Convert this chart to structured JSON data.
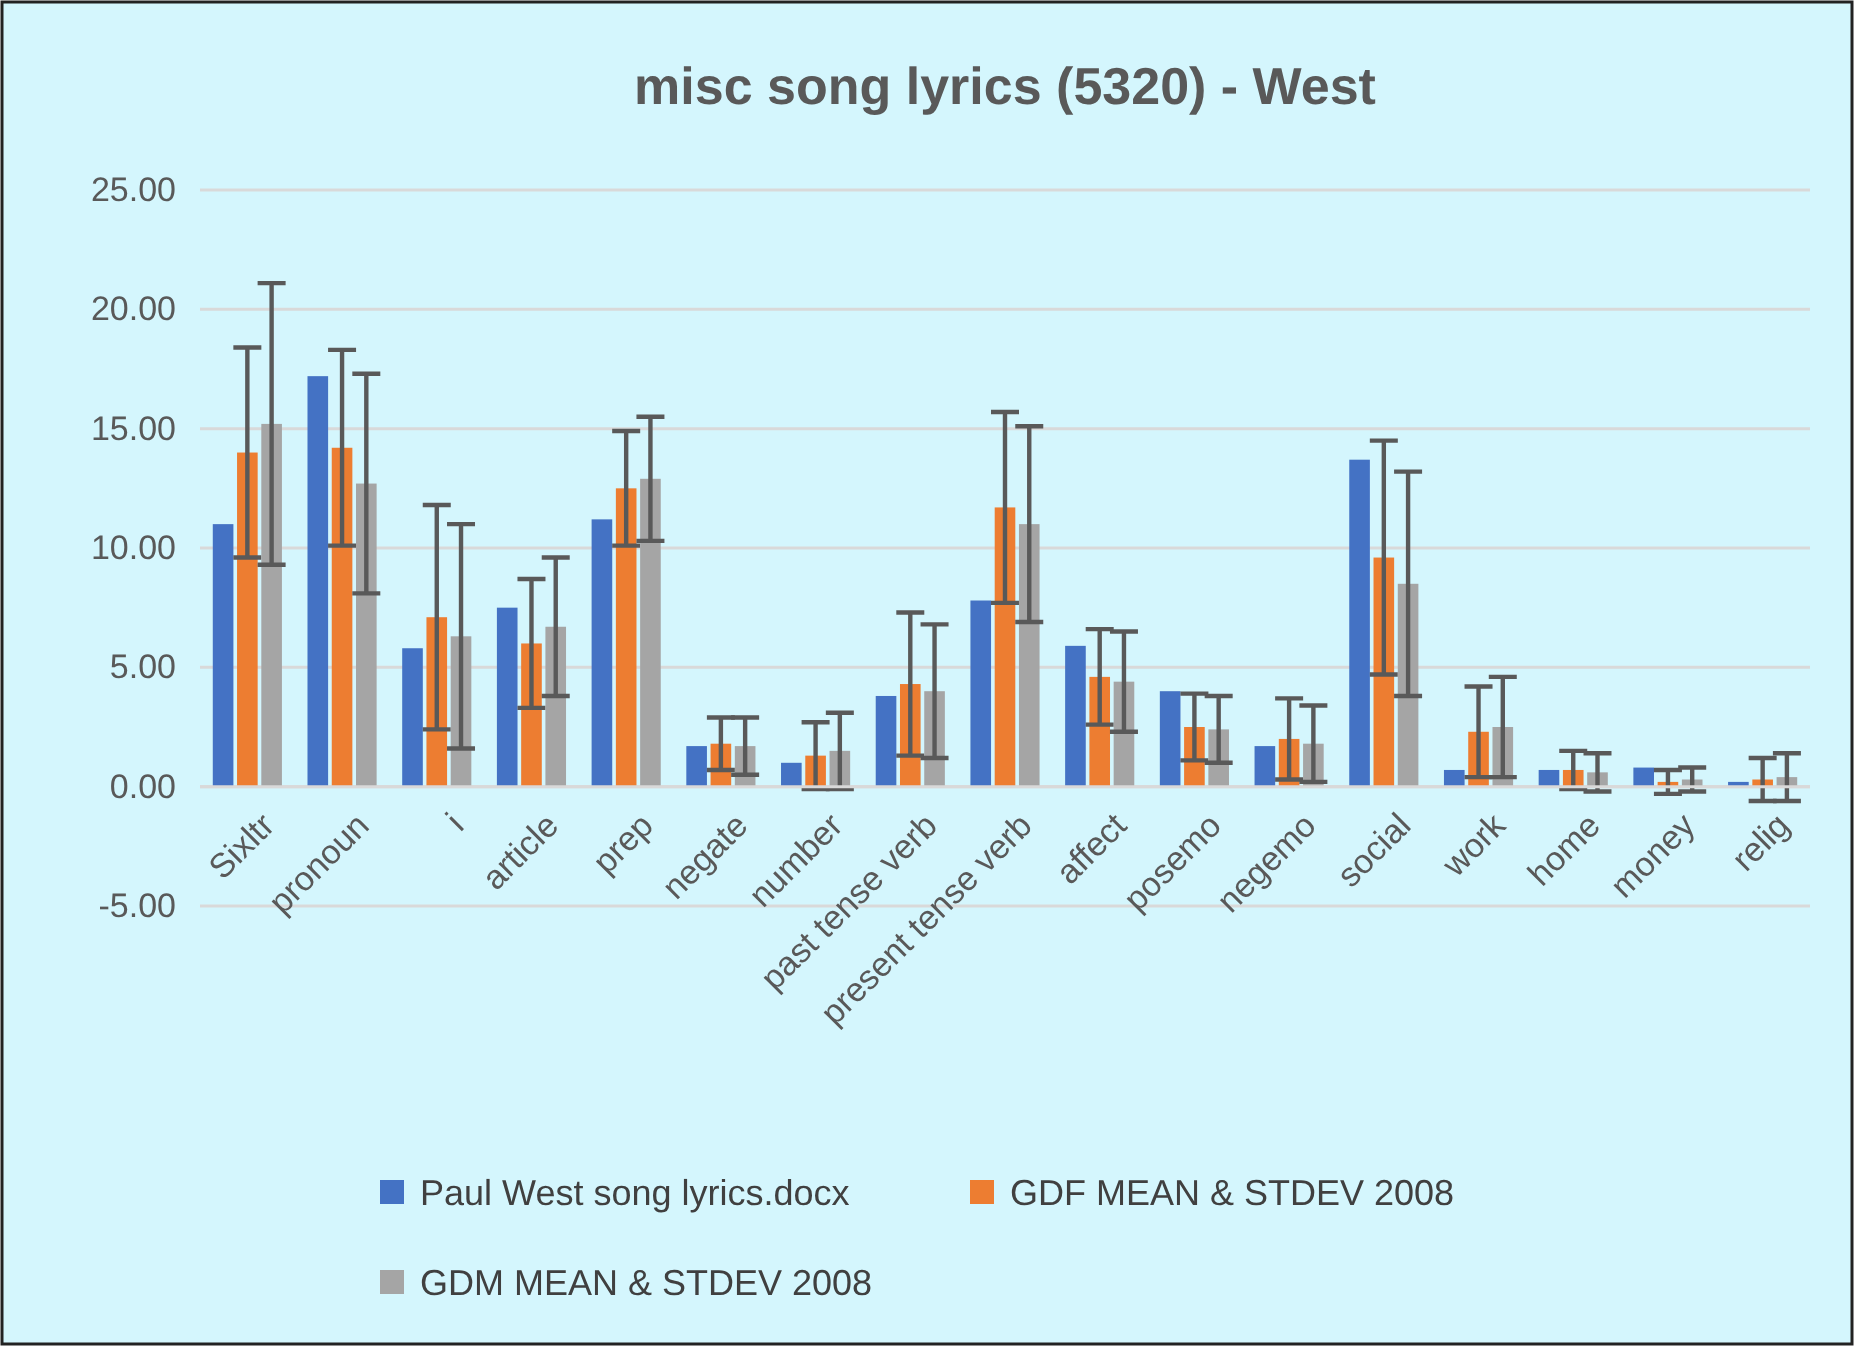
{
  "chart_data": {
    "type": "bar",
    "title": "misc song lyrics (5320) - West",
    "categories": [
      "Sixltr",
      "pronoun",
      "i",
      "article",
      "prep",
      "negate",
      "number",
      "past tense verb",
      "present tense verb",
      "affect",
      "posemo",
      "negemo",
      "social",
      "work",
      "home",
      "money",
      "relig"
    ],
    "series": [
      {
        "name": "Paul West song lyrics.docx",
        "color": "#4472c4",
        "values": [
          11.0,
          17.2,
          5.8,
          7.5,
          11.2,
          1.7,
          1.0,
          3.8,
          7.8,
          5.9,
          4.0,
          1.7,
          13.7,
          0.7,
          0.7,
          0.8,
          0.2
        ]
      },
      {
        "name": "GDF  MEAN & STDEV 2008",
        "color": "#ed7d31",
        "values": [
          14.0,
          14.2,
          7.1,
          6.0,
          12.5,
          1.8,
          1.3,
          4.3,
          11.7,
          4.6,
          2.5,
          2.0,
          9.6,
          2.3,
          0.7,
          0.2,
          0.3
        ],
        "errors": [
          4.4,
          4.1,
          4.7,
          2.7,
          2.4,
          1.1,
          1.4,
          3.0,
          4.0,
          2.0,
          1.4,
          1.7,
          4.9,
          1.9,
          0.8,
          0.5,
          0.9
        ]
      },
      {
        "name": "GDM MEAN & STDEV 2008",
        "color": "#a5a5a5",
        "values": [
          15.2,
          12.7,
          6.3,
          6.7,
          12.9,
          1.7,
          1.5,
          4.0,
          11.0,
          4.4,
          2.4,
          1.8,
          8.5,
          2.5,
          0.6,
          0.3,
          0.4
        ],
        "errors": [
          5.9,
          4.6,
          4.7,
          2.9,
          2.6,
          1.2,
          1.6,
          2.8,
          4.1,
          2.1,
          1.4,
          1.6,
          4.7,
          2.1,
          0.8,
          0.5,
          1.0
        ]
      }
    ],
    "ylim": [
      -5,
      25
    ],
    "yticks": [
      {
        "value": -5,
        "label": "-5.00"
      },
      {
        "value": 0,
        "label": "0.00"
      },
      {
        "value": 5,
        "label": "5.00"
      },
      {
        "value": 10,
        "label": "10.00"
      },
      {
        "value": 15,
        "label": "15.00"
      },
      {
        "value": 20,
        "label": "20.00"
      },
      {
        "value": 25,
        "label": "25.00"
      }
    ],
    "grid": "y",
    "legend": "bottom"
  }
}
